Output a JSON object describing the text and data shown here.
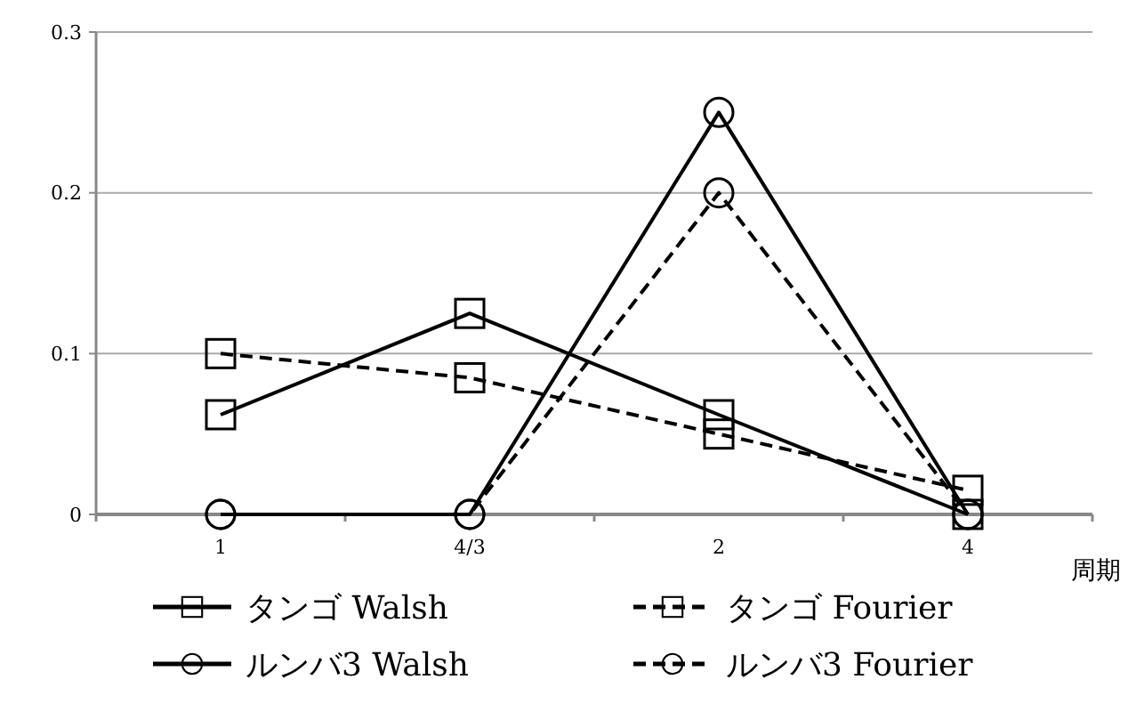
{
  "chart_data": {
    "type": "line",
    "xlabel": "周期",
    "categories": [
      "1",
      "4/3",
      "2",
      "4"
    ],
    "ylim": [
      0,
      0.3
    ],
    "yticks": [
      0,
      0.1,
      0.2,
      0.3
    ],
    "grid": "y",
    "legend": "bottom",
    "series": [
      {
        "name": "タンゴ Walsh",
        "color": "#000000",
        "marker": "square",
        "line_style": "solid",
        "values": [
          0.062,
          0.125,
          0.062,
          0
        ]
      },
      {
        "name": "タンゴ Fourier",
        "color": "#000000",
        "marker": "square",
        "line_style": "dashed",
        "values": [
          0.1,
          0.085,
          0.05,
          0.015
        ]
      },
      {
        "name": "ルンバ3 Walsh",
        "color": "#000000",
        "marker": "circle",
        "line_style": "solid",
        "values": [
          0,
          0,
          0.25,
          0
        ]
      },
      {
        "name": "ルンバ3 Fourier",
        "color": "#000000",
        "marker": "circle",
        "line_style": "dashed",
        "values": [
          0,
          0,
          0.2,
          0
        ]
      }
    ]
  }
}
